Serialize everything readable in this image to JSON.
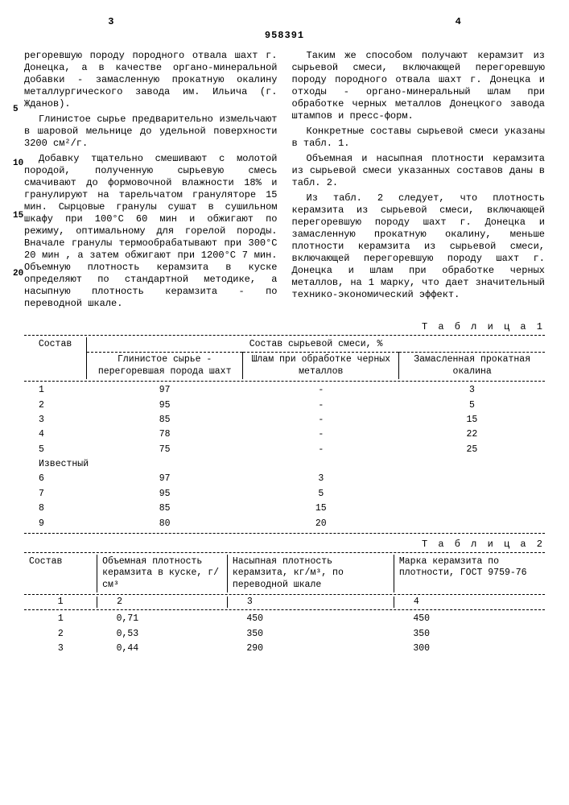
{
  "page_left": "3",
  "page_right": "4",
  "doc_number": "958391",
  "left_col": {
    "p1": "регоревшую породу породного отвала шахт г. Донецка, а в качестве органо-минеральной добавки - замасленную прокатную окалину металлургического завода им. Ильича (г. Жданов).",
    "p2": "Глинистое сырье предварительно измельчают в шаровой мельнице до удельной поверхности 3200 см²/г.",
    "p3": "Добавку тщательно смешивают с молотой породой, полученную сырьевую смесь смачивают до формовочной влажности 18% и гранулируют на тарельчатом грануляторе 15 мин. Сырцовые гранулы сушат в сушильном шкафу при 100°С 60 мин и обжигают по режиму, оптимальному для горелой породы. Вначале гранулы термообрабатывают при 300°С 20 мин , а затем обжигают при 1200°С 7 мин. Объемную плотность керамзита в куске определяют по стандартной методике, а насыпную плотность керамзита - по переводной шкале."
  },
  "right_col": {
    "p1": "Таким же способом получают керамзит из сырьевой смеси, включающей перегоревшую породу породного отвала шахт г. Донецка и отходы - органо-минеральный шлам при обработке черных металлов Донецкого завода штампов и пресс-форм.",
    "p2": "Конкретные составы сырьевой смеси указаны в табл. 1.",
    "p3": "Объемная и насыпная плотности керамзита из сырьевой смеси указанных составов даны в табл. 2.",
    "p4": "Из табл. 2 следует, что плотность керамзита из сырьевой смеси, включающей перегоревшую породу шахт г. Донецка и замасленную прокатную окалину, меньше плотности керамзита из сырьевой смеси, включающей перегоревшую породу шахт г. Донецка и шлам при обработке черных металлов, на 1 марку, что дает значительный технико-экономический эффект."
  },
  "line_marks": {
    "m5": "5",
    "m10": "10",
    "m15": "15",
    "m20": "20"
  },
  "table1": {
    "label": "Т а б л и ц а  1",
    "super_header": "Состав сырьевой смеси, %",
    "h1": "Состав",
    "h2": "Глинистое сырье - перегоревшая порода шахт",
    "h3": "Шлам при обработке черных металлов",
    "h4": "Замасленная прокатная окалина",
    "rows": [
      {
        "n": "1",
        "a": "97",
        "b": "-",
        "c": "3"
      },
      {
        "n": "2",
        "a": "95",
        "b": "-",
        "c": "5"
      },
      {
        "n": "3",
        "a": "85",
        "b": "-",
        "c": "15"
      },
      {
        "n": "4",
        "a": "78",
        "b": "-",
        "c": "22"
      },
      {
        "n": "5",
        "a": "75",
        "b": "-",
        "c": "25"
      }
    ],
    "known_label": "Известный",
    "rows2": [
      {
        "n": "6",
        "a": "97",
        "b": "3",
        "c": ""
      },
      {
        "n": "7",
        "a": "95",
        "b": "5",
        "c": ""
      },
      {
        "n": "8",
        "a": "85",
        "b": "15",
        "c": ""
      },
      {
        "n": "9",
        "a": "80",
        "b": "20",
        "c": ""
      }
    ]
  },
  "table2": {
    "label": "Т а б л и ц а  2",
    "h1": "Состав",
    "h2": "Объемная плотность керамзита в куске, г/см³",
    "h3": "Насыпная плотность керамзита, кг/м³, по переводной шкале",
    "h4": "Марка керамзита по плотности, ГОСТ 9759-76",
    "numrow": {
      "a": "1",
      "b": "2",
      "c": "3",
      "d": "4"
    },
    "rows": [
      {
        "n": "1",
        "a": "0,71",
        "b": "450",
        "c": "450"
      },
      {
        "n": "2",
        "a": "0,53",
        "b": "350",
        "c": "350"
      },
      {
        "n": "3",
        "a": "0,44",
        "b": "290",
        "c": "300"
      }
    ]
  }
}
